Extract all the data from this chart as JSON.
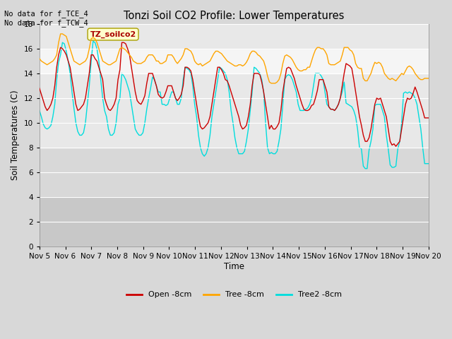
{
  "title": "Tonzi Soil CO2 Profile: Lower Temperatures",
  "ylabel": "Soil Temperatures (C)",
  "xlabel": "Time",
  "corner_text": "No data for f_TCE_4\nNo data for f_TCW_4",
  "box_label": "TZ_soilco2",
  "ylim": [
    0,
    18
  ],
  "yticks": [
    0,
    2,
    4,
    6,
    8,
    10,
    12,
    14,
    16,
    18
  ],
  "xtick_labels": [
    "Nov 5",
    "Nov 6",
    "Nov 7",
    "Nov 8",
    "Nov 9",
    "Nov 10",
    "Nov 11",
    "Nov 12",
    "Nov 13",
    "Nov 14",
    "Nov 15",
    "Nov 16",
    "Nov 17",
    "Nov 18",
    "Nov 19",
    "Nov 20"
  ],
  "legend_labels": [
    "Open -8cm",
    "Tree -8cm",
    "Tree2 -8cm"
  ],
  "legend_colors": [
    "#cc0000",
    "#ffa500",
    "#00dddd"
  ],
  "bg_color": "#d8d8d8",
  "plot_bg_upper": "#e8e8e8",
  "plot_bg_lower": "#d0d0d0",
  "shade_light": "#e8e8e8",
  "shade_dark": "#d8d8d8",
  "open_8cm": [
    12.8,
    12.3,
    11.8,
    11.3,
    11.0,
    11.2,
    11.5,
    12.0,
    13.0,
    14.5,
    15.5,
    16.1,
    16.0,
    15.8,
    15.5,
    15.0,
    14.5,
    13.5,
    12.5,
    11.5,
    11.0,
    11.1,
    11.3,
    11.5,
    12.0,
    13.0,
    14.0,
    15.5,
    15.5,
    15.2,
    15.0,
    14.5,
    14.0,
    13.5,
    12.0,
    11.5,
    11.1,
    11.0,
    11.2,
    11.5,
    12.0,
    13.5,
    14.3,
    16.5,
    16.5,
    16.4,
    16.0,
    15.5,
    14.5,
    13.5,
    12.5,
    11.8,
    11.6,
    11.5,
    11.8,
    12.2,
    13.2,
    14.0,
    14.0,
    14.0,
    13.5,
    13.0,
    12.3,
    12.1,
    12.0,
    12.1,
    12.5,
    13.0,
    13.0,
    13.0,
    12.5,
    12.0,
    11.8,
    12.0,
    12.3,
    13.0,
    14.5,
    14.5,
    14.4,
    14.2,
    13.5,
    12.5,
    11.5,
    10.5,
    9.7,
    9.5,
    9.6,
    9.8,
    10.0,
    10.5,
    11.5,
    12.5,
    13.5,
    14.5,
    14.5,
    14.3,
    14.0,
    13.5,
    13.4,
    13.0,
    12.5,
    12.0,
    11.5,
    11.0,
    10.5,
    9.8,
    9.5,
    9.6,
    9.8,
    10.5,
    11.5,
    13.0,
    14.0,
    14.0,
    14.0,
    13.9,
    13.3,
    12.5,
    11.5,
    10.5,
    9.5,
    9.8,
    9.5,
    9.5,
    9.7,
    10.0,
    11.0,
    12.5,
    13.5,
    14.4,
    14.5,
    14.4,
    14.0,
    13.6,
    13.0,
    12.5,
    12.0,
    11.5,
    11.1,
    11.0,
    11.0,
    11.1,
    11.4,
    11.5,
    12.0,
    12.6,
    13.5,
    13.5,
    13.5,
    13.0,
    12.5,
    11.3,
    11.1,
    11.1,
    11.0,
    11.2,
    11.5,
    12.0,
    13.0,
    14.0,
    14.8,
    14.7,
    14.6,
    14.4,
    13.5,
    12.5,
    11.5,
    10.5,
    9.8,
    9.0,
    8.5,
    8.5,
    8.8,
    9.5,
    10.5,
    11.5,
    12.0,
    11.9,
    12.0,
    11.5,
    11.0,
    10.5,
    9.5,
    8.5,
    8.2,
    8.3,
    8.1,
    8.3,
    8.5,
    9.5,
    10.5,
    11.5,
    12.0,
    11.9,
    12.0,
    12.4,
    12.9,
    12.5,
    12.0,
    11.5,
    11.0,
    10.4,
    10.4,
    10.4
  ],
  "tree_8cm": [
    15.2,
    15.0,
    14.9,
    14.8,
    14.7,
    14.8,
    14.9,
    15.0,
    15.2,
    15.5,
    16.5,
    17.2,
    17.2,
    17.1,
    17.0,
    16.5,
    16.0,
    15.5,
    15.0,
    14.9,
    14.8,
    14.7,
    14.8,
    14.9,
    15.0,
    15.3,
    16.0,
    16.8,
    16.9,
    16.8,
    16.5,
    16.0,
    15.5,
    15.0,
    14.9,
    14.8,
    14.7,
    14.7,
    14.8,
    14.9,
    15.0,
    15.5,
    16.0,
    16.1,
    16.0,
    15.9,
    15.7,
    15.5,
    15.3,
    15.0,
    14.9,
    14.8,
    14.8,
    14.8,
    14.9,
    15.0,
    15.3,
    15.5,
    15.5,
    15.5,
    15.3,
    15.0,
    15.0,
    14.8,
    14.8,
    14.9,
    15.0,
    15.5,
    15.5,
    15.5,
    15.3,
    15.0,
    14.8,
    15.0,
    15.2,
    15.5,
    16.0,
    16.0,
    15.9,
    15.8,
    15.5,
    15.0,
    14.8,
    14.7,
    14.8,
    14.6,
    14.7,
    14.8,
    14.9,
    15.0,
    15.3,
    15.6,
    15.8,
    15.8,
    15.7,
    15.6,
    15.4,
    15.2,
    15.0,
    14.9,
    14.8,
    14.7,
    14.6,
    14.6,
    14.7,
    14.7,
    14.6,
    14.7,
    14.9,
    15.2,
    15.6,
    15.8,
    15.8,
    15.7,
    15.5,
    15.4,
    15.2,
    15.0,
    14.5,
    13.8,
    13.3,
    13.2,
    13.2,
    13.2,
    13.3,
    13.5,
    14.0,
    14.8,
    15.4,
    15.5,
    15.4,
    15.3,
    15.1,
    14.8,
    14.5,
    14.3,
    14.2,
    14.2,
    14.3,
    14.3,
    14.5,
    14.5,
    15.0,
    15.5,
    15.9,
    16.1,
    16.1,
    16.0,
    16.0,
    15.8,
    15.5,
    14.8,
    14.7,
    14.7,
    14.7,
    14.8,
    14.9,
    15.0,
    15.5,
    16.1,
    16.1,
    16.1,
    15.9,
    15.8,
    15.5,
    14.8,
    14.5,
    14.4,
    14.4,
    13.6,
    13.4,
    13.4,
    13.7,
    14.0,
    14.5,
    14.9,
    14.8,
    14.9,
    14.8,
    14.5,
    14.0,
    13.8,
    13.6,
    13.5,
    13.6,
    13.5,
    13.4,
    13.6,
    13.8,
    14.0,
    13.9,
    14.2,
    14.5,
    14.6,
    14.5,
    14.3,
    14.0,
    13.8,
    13.6,
    13.5,
    13.5,
    13.6,
    13.6,
    13.6
  ],
  "tree2_8cm": [
    11.0,
    10.5,
    9.9,
    9.6,
    9.5,
    9.6,
    9.8,
    10.5,
    11.5,
    13.5,
    14.9,
    15.5,
    16.5,
    16.4,
    15.8,
    15.0,
    14.0,
    12.5,
    11.2,
    10.0,
    9.3,
    9.0,
    9.0,
    9.2,
    10.0,
    11.5,
    13.0,
    15.0,
    16.6,
    16.5,
    16.0,
    15.0,
    13.5,
    12.0,
    11.0,
    10.5,
    9.5,
    9.0,
    9.0,
    9.2,
    10.0,
    11.5,
    12.0,
    14.0,
    13.8,
    13.5,
    13.0,
    12.5,
    11.5,
    10.5,
    9.5,
    9.2,
    9.0,
    9.0,
    9.2,
    10.0,
    11.1,
    12.0,
    12.8,
    13.7,
    13.5,
    13.0,
    12.5,
    12.5,
    11.5,
    11.5,
    11.4,
    11.5,
    12.0,
    12.5,
    12.5,
    12.0,
    11.5,
    11.5,
    12.0,
    13.5,
    14.5,
    14.4,
    14.3,
    14.0,
    13.0,
    11.5,
    10.5,
    9.0,
    8.0,
    7.5,
    7.3,
    7.5,
    8.0,
    9.0,
    10.5,
    11.5,
    12.5,
    13.5,
    14.5,
    14.4,
    14.2,
    14.0,
    13.5,
    12.5,
    11.0,
    10.0,
    8.8,
    8.0,
    7.5,
    7.5,
    7.5,
    7.7,
    8.5,
    9.5,
    11.0,
    12.5,
    14.5,
    14.4,
    14.2,
    14.0,
    13.5,
    12.5,
    10.0,
    8.0,
    7.5,
    7.6,
    7.5,
    7.5,
    7.7,
    8.5,
    9.5,
    11.5,
    13.5,
    13.8,
    13.9,
    13.8,
    13.5,
    13.0,
    12.5,
    11.5,
    11.0,
    11.0,
    11.0,
    11.1,
    11.2,
    11.5,
    12.0,
    13.0,
    14.0,
    14.0,
    14.0,
    13.8,
    13.5,
    12.5,
    11.5,
    11.3,
    11.1,
    11.1,
    11.0,
    11.2,
    11.5,
    12.0,
    12.5,
    13.3,
    11.6,
    11.5,
    11.4,
    11.3,
    11.0,
    10.5,
    9.5,
    8.0,
    7.9,
    6.5,
    6.3,
    6.3,
    7.8,
    8.5,
    9.5,
    11.4,
    11.5,
    11.5,
    11.5,
    11.0,
    10.5,
    9.0,
    7.9,
    6.6,
    6.4,
    6.4,
    6.5,
    7.9,
    8.5,
    10.0,
    12.4,
    12.5,
    12.4,
    12.5,
    12.4,
    12.3,
    12.0,
    11.5,
    10.5,
    9.5,
    8.0,
    6.7,
    6.7,
    6.7
  ],
  "n_days": 15,
  "pts_per_day": 12
}
